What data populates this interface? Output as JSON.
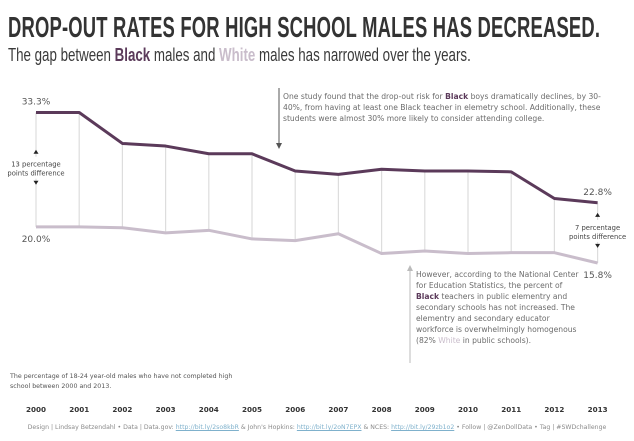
{
  "header": {
    "title": "DROP-OUT RATES FOR HIGH SCHOOL MALES HAS DECREASED.",
    "subtitle_parts": {
      "pre": "The gap between ",
      "black": "Black",
      "mid": " males and ",
      "white": "White",
      "post": " males has narrowed over the years."
    }
  },
  "colors": {
    "black_series": "#5b3a5a",
    "white_series": "#c9bdcb",
    "connector": "#dddddd",
    "annotation_arrow_dark": "#555555",
    "annotation_arrow_light": "#bbbbbb",
    "link": "#7fb1cc"
  },
  "annotations": {
    "top": {
      "pre": "One study found that the drop-out risk for ",
      "black": "Black",
      "post": " boys dramatically declines, by 30-40%, from having at least one Black teacher in elemetry school. Additionally, these students were almost 30% more likely to consider attending college."
    },
    "bottom": {
      "pre": "However, according to the National Center for Education Statistics, the percent of ",
      "black": "Black",
      "mid": " teachers in public elementry and secondary schools has not increased. The elementry and secondary educator workforce is overwhelmingly homogenous (82% ",
      "white": "White",
      "post": " in public schools)."
    },
    "diff_start": [
      "13 percentage",
      "points difference"
    ],
    "diff_end": [
      "7 percentage",
      "points difference"
    ]
  },
  "caption": "The percentage of 18-24 year-old males who have not completed high school between 2000 and 2013.",
  "footer": {
    "design": "Design | Lindsay Betzendahl",
    "data_label": "Data | Data.gov: ",
    "link1": "http://bit.ly/2so8kbR",
    "jh_label": " & John's Hopkins: ",
    "link2": "http://bit.ly/2oN7EPX",
    "nces_label": " & NCES: ",
    "link3": "http://bit.ly/29zb1o2",
    "follow": "Follow | @ZenDollData",
    "tag": "Tag | #SWDchallenge",
    "sep": " • "
  },
  "chart_data": {
    "type": "line",
    "title": "DROP-OUT RATES FOR HIGH SCHOOL MALES HAS DECREASED.",
    "xlabel": "",
    "ylabel": "",
    "x": [
      "2000",
      "2001",
      "2002",
      "2003",
      "2004",
      "2005",
      "2006",
      "2007",
      "2008",
      "2009",
      "2010",
      "2011",
      "2012",
      "2013"
    ],
    "series": [
      {
        "name": "Black males",
        "values": [
          33.3,
          33.3,
          29.7,
          29.4,
          28.5,
          28.5,
          26.5,
          26.1,
          26.7,
          26.5,
          26.5,
          26.4,
          23.3,
          22.8
        ]
      },
      {
        "name": "White males",
        "values": [
          20.0,
          20.0,
          19.9,
          19.3,
          19.6,
          18.6,
          18.4,
          19.2,
          16.9,
          17.2,
          16.9,
          17.0,
          17.0,
          15.8
        ]
      }
    ],
    "data_labels": [
      {
        "series": "Black males",
        "x": "2000",
        "text": "33.3%"
      },
      {
        "series": "White males",
        "x": "2000",
        "text": "20.0%"
      },
      {
        "series": "Black males",
        "x": "2013",
        "text": "22.8%"
      },
      {
        "series": "White males",
        "x": "2013",
        "text": "15.8%"
      }
    ],
    "ylim": [
      15.8,
      33.3
    ],
    "grid": false,
    "legend": "subtitle"
  }
}
